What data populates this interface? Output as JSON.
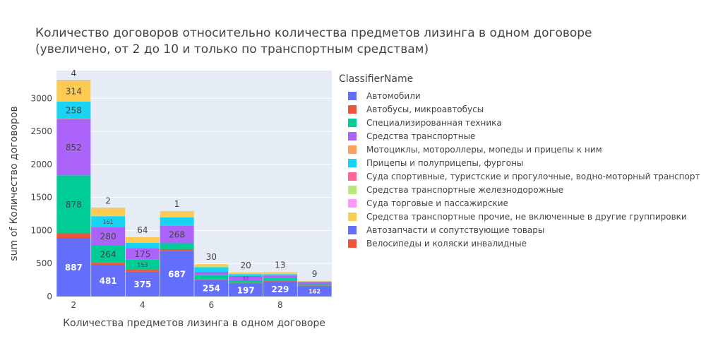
{
  "title": {
    "line1": "Количество договоров относительно количества предметов лизинга в одном договоре",
    "line2": "(увеличено, от 2 до 10 и только по транспортным средствам)"
  },
  "chart_data": {
    "type": "bar",
    "barmode": "stack",
    "xlabel": "Количества предметов лизинга в одном договоре",
    "ylabel": "sum of Количество договоров",
    "x": [
      2,
      3,
      4,
      5,
      6,
      7,
      8,
      9
    ],
    "xlim": [
      1.5,
      9.5
    ],
    "ylim": [
      0,
      3420
    ],
    "xticks": [
      2,
      4,
      6,
      8
    ],
    "yticks": [
      0,
      500,
      1000,
      1500,
      2000,
      2500,
      3000
    ],
    "legend_title": "ClassifierName",
    "legend_position": "right",
    "series": [
      {
        "name": "Автомобили",
        "color": "#636efa",
        "values": [
          887,
          481,
          375,
          687,
          254,
          197,
          229,
          162
        ],
        "labels": [
          "887",
          "481",
          "375",
          "687",
          "254",
          "197",
          "229",
          "162"
        ]
      },
      {
        "name": "Автобусы, микроавтобусы",
        "color": "#EF553B",
        "values": [
          70,
          30,
          30,
          30,
          10,
          10,
          10,
          5
        ],
        "labels": [
          "",
          "",
          "",
          "",
          "",
          "",
          "",
          ""
        ]
      },
      {
        "name": "Специализированная техника",
        "color": "#00cc96",
        "values": [
          878,
          264,
          153,
          90,
          60,
          40,
          40,
          20
        ],
        "labels": [
          "878",
          "264",
          "153",
          "",
          "",
          "",
          "",
          ""
        ]
      },
      {
        "name": "Средства транспортные",
        "color": "#ab63fa",
        "values": [
          852,
          280,
          175,
          268,
          50,
          63,
          40,
          30
        ],
        "labels": [
          "852",
          "280",
          "175",
          "268",
          "",
          "63",
          "",
          ""
        ]
      },
      {
        "name": "Мотоциклы, мотороллеры, мопеды и прицепы к ним",
        "color": "#FFA15A",
        "values": [
          5,
          0,
          0,
          5,
          0,
          0,
          0,
          0
        ],
        "labels": [
          "",
          "",
          "",
          "",
          "",
          "",
          "",
          ""
        ]
      },
      {
        "name": "Прицепы и полуприцепы, фургоны",
        "color": "#19d3f3",
        "values": [
          258,
          161,
          80,
          120,
          70,
          30,
          20,
          10
        ],
        "labels": [
          "258",
          "161",
          "",
          "",
          "",
          "",
          "",
          ""
        ]
      },
      {
        "name": "Суда спортивные, туристские и прогулочные, водно-моторный транспорт",
        "color": "#FF6692",
        "values": [
          0,
          0,
          0,
          0,
          0,
          0,
          0,
          0
        ],
        "labels": [
          "",
          "",
          "",
          "",
          "",
          "",
          "",
          ""
        ]
      },
      {
        "name": "Средства транспортные железнодорожные",
        "color": "#B6E880",
        "values": [
          5,
          5,
          5,
          5,
          5,
          0,
          5,
          0
        ],
        "labels": [
          "",
          "",
          "",
          "",
          "",
          "",
          "",
          ""
        ]
      },
      {
        "name": "Суда торговые и пассажирские",
        "color": "#FF97FF",
        "values": [
          0,
          0,
          0,
          0,
          0,
          0,
          0,
          0
        ],
        "labels": [
          "",
          "",
          "",
          "",
          "",
          "",
          "",
          ""
        ]
      },
      {
        "name": "Средства транспортные прочие, не включенные в другие группировки",
        "color": "#FECB52",
        "values": [
          314,
          120,
          80,
          85,
          40,
          25,
          25,
          10
        ],
        "labels": [
          "314",
          "",
          "",
          "",
          "",
          "",
          "",
          ""
        ]
      },
      {
        "name": "Автозапчасти и сопутствующие товары",
        "color": "#636efa",
        "values": [
          4,
          2,
          0,
          1,
          0,
          0,
          0,
          0
        ],
        "labels": [
          "",
          "",
          "",
          "",
          "",
          "",
          "",
          ""
        ]
      },
      {
        "name": "Велосипеды и коляски инвалидные",
        "color": "#EF553B",
        "values": [
          0,
          0,
          0,
          0,
          0,
          0,
          0,
          0
        ],
        "labels": [
          "",
          "",
          "",
          "",
          "",
          "",
          "",
          ""
        ]
      }
    ],
    "top_labels": [
      "4",
      "2",
      "64",
      "1",
      "30",
      "20",
      "13",
      "9"
    ]
  }
}
